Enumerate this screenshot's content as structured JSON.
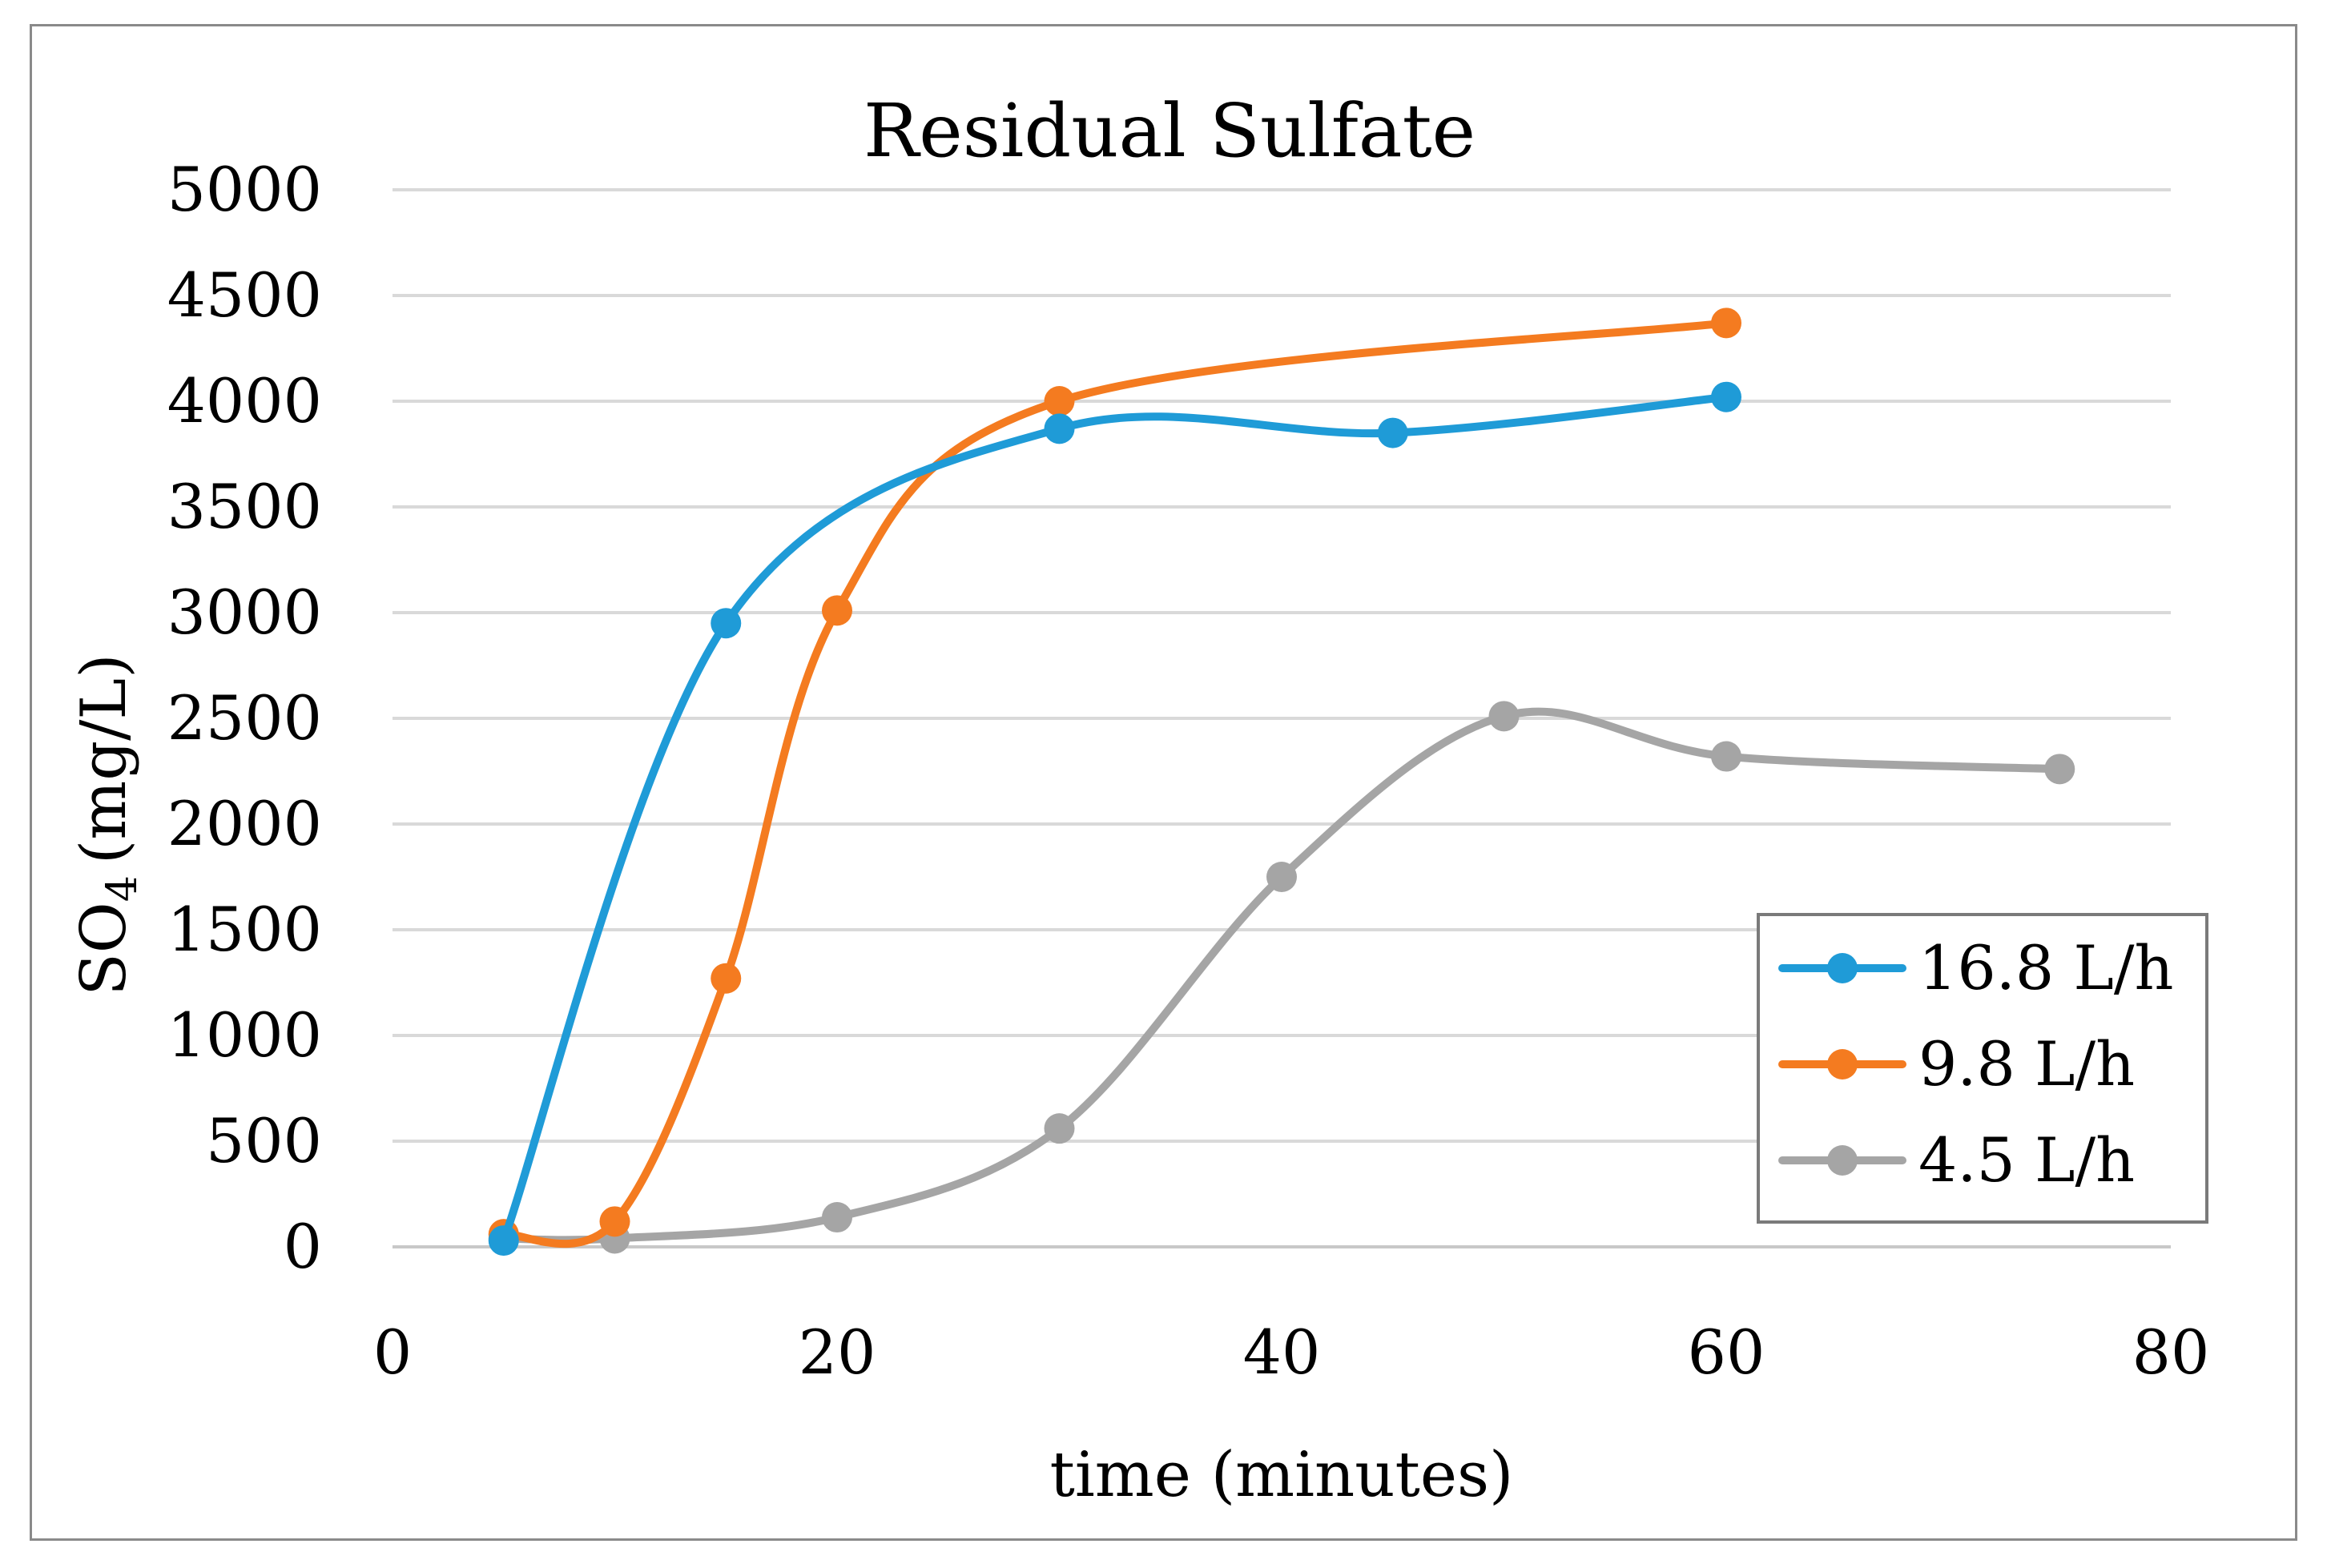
{
  "chart_data": {
    "type": "scatter",
    "title": "Residual Sulfate",
    "xlabel": "time (minutes)",
    "ylabel": {
      "main": "SO",
      "subscript": "4",
      "unit": "(mg/L)"
    },
    "xlim": [
      0,
      80
    ],
    "ylim": [
      0,
      5000
    ],
    "xticks": [
      0,
      20,
      40,
      60,
      80
    ],
    "yticks": [
      0,
      500,
      1000,
      1500,
      2000,
      2500,
      3000,
      3500,
      4000,
      4500,
      5000
    ],
    "xtick_labels": [
      "0",
      "20",
      "40",
      "60",
      "80"
    ],
    "ytick_labels": [
      "0",
      "500",
      "1000",
      "1500",
      "2000",
      "2500",
      "3000",
      "3500",
      "4000",
      "4500",
      "5000"
    ],
    "grid": "horizontal",
    "legend_position": "bottom-right",
    "smooth": true,
    "series": [
      {
        "name": "16.8 L/h",
        "color": "#1f9bd7",
        "x": [
          5,
          15,
          30,
          45,
          60
        ],
        "y": [
          30,
          2950,
          3870,
          3850,
          4020
        ]
      },
      {
        "name": "9.8 L/h",
        "color": "#f47b20",
        "x": [
          5,
          10,
          15,
          20,
          30,
          60
        ],
        "y": [
          60,
          120,
          1270,
          3010,
          4000,
          4370
        ]
      },
      {
        "name": "4.5 L/h",
        "color": "#a5a5a5",
        "x": [
          5,
          10,
          20,
          30,
          40,
          50,
          60,
          75
        ],
        "y": [
          40,
          40,
          140,
          560,
          1750,
          2510,
          2320,
          2260
        ]
      }
    ]
  }
}
